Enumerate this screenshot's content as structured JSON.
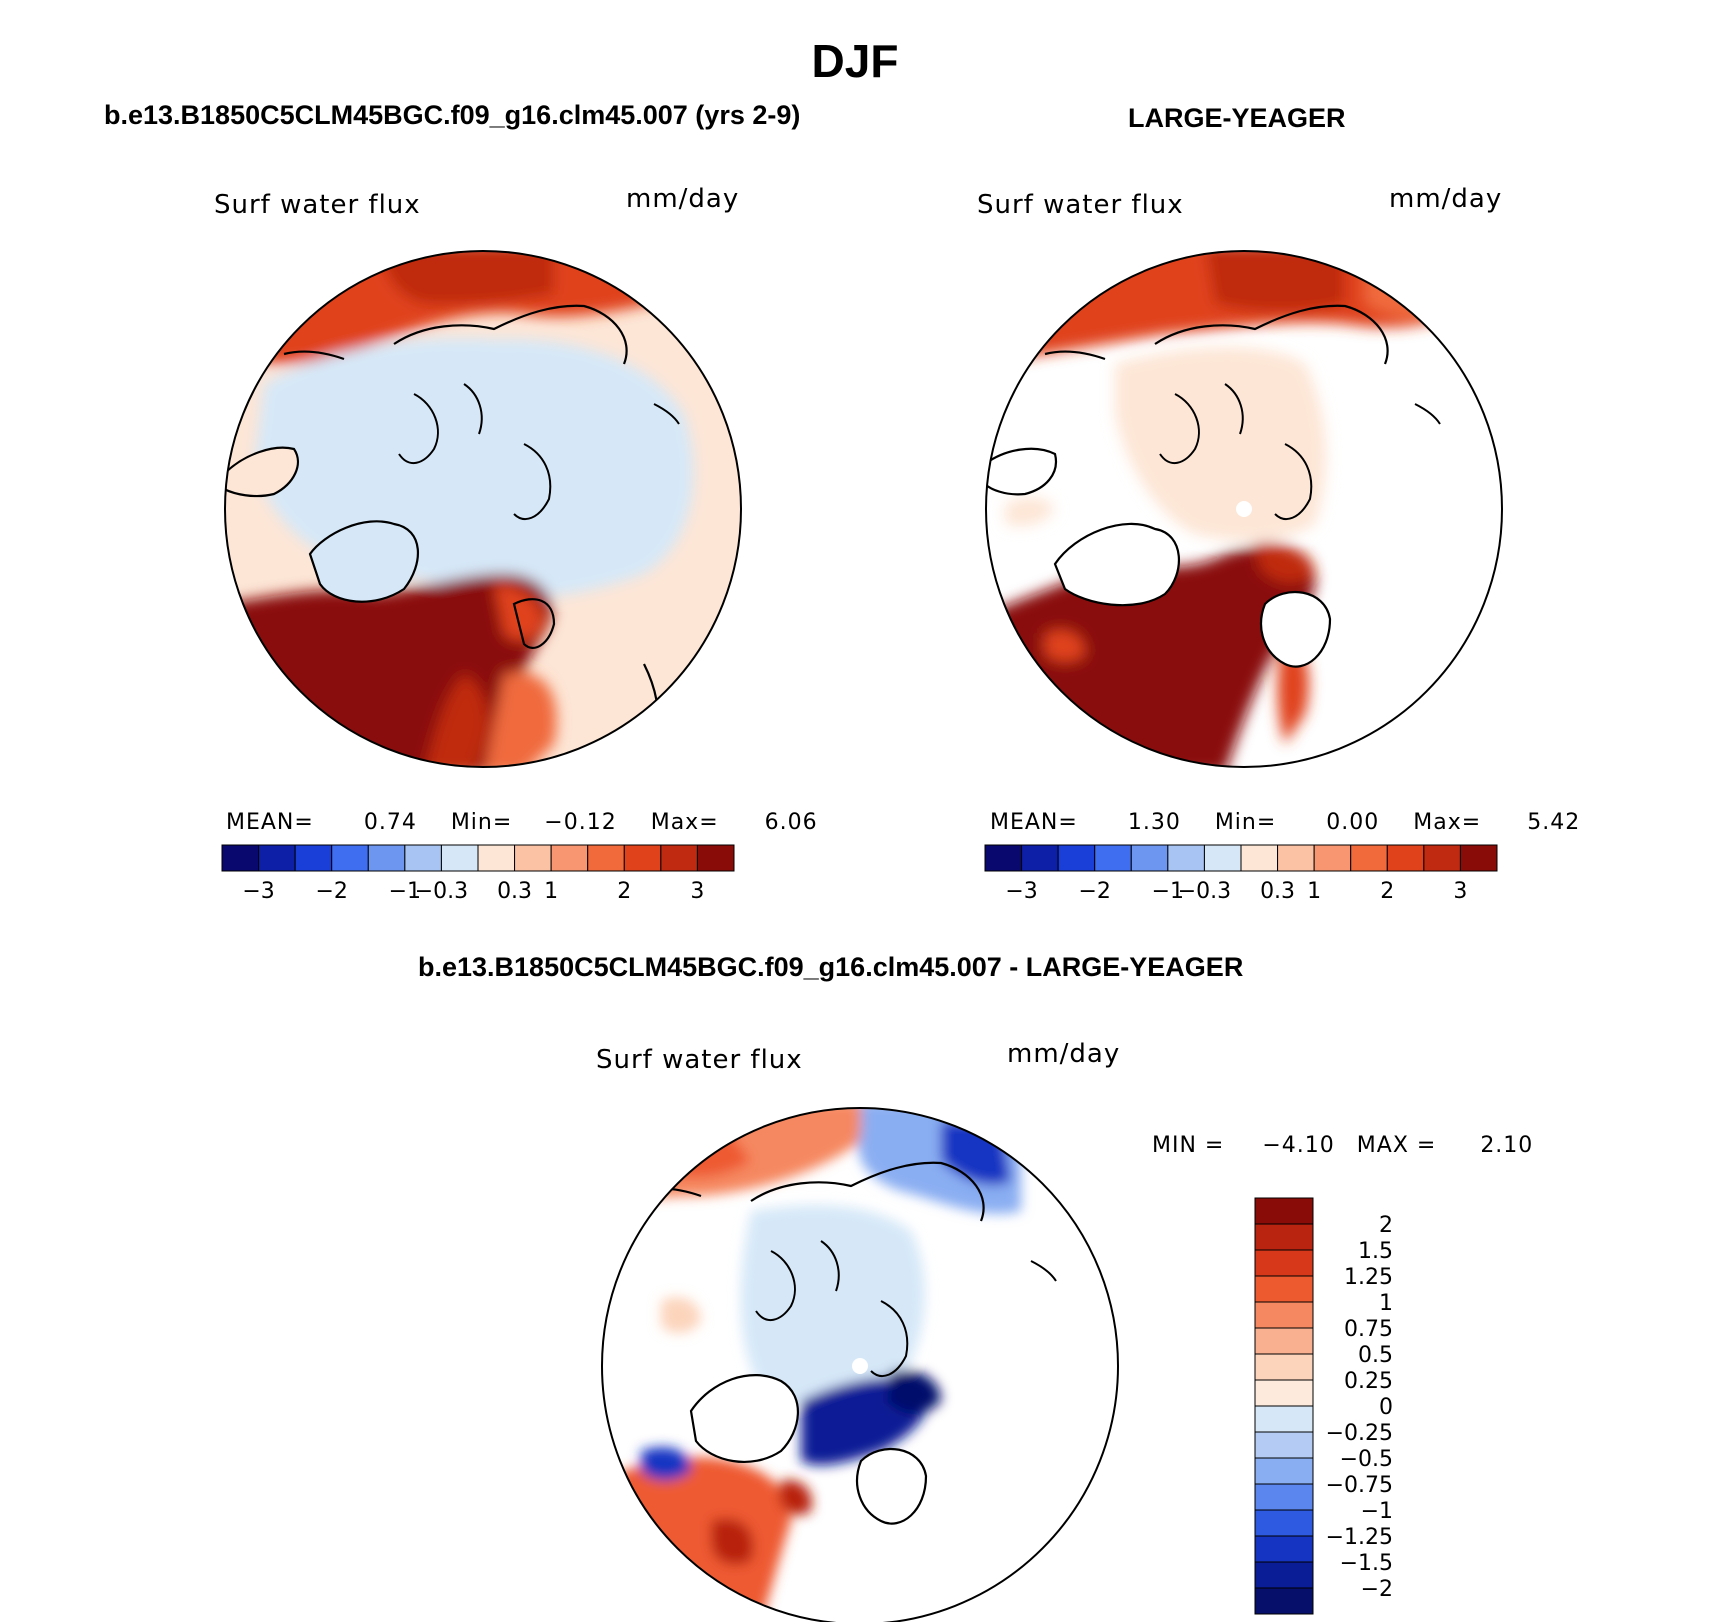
{
  "figure": {
    "title": "DJF"
  },
  "panels": [
    {
      "id": "model",
      "title": "b.e13.B1850C5CLM45BGC.f09_g16.clm45.007 (yrs 2-9)",
      "field_label": "Surf water flux",
      "units": "mm/day",
      "stats": {
        "mean_label": "MEAN=",
        "mean": "0.74",
        "min_label": "Min=",
        "min": "−0.12",
        "max_label": "Max=",
        "max": "6.06"
      },
      "colorbar_ticks": [
        "−3",
        "−2",
        "−1",
        "−0.3",
        "0.3",
        "1",
        "2",
        "3"
      ]
    },
    {
      "id": "obs",
      "title": "LARGE-YEAGER",
      "field_label": "Surf water flux",
      "units": "mm/day",
      "stats": {
        "mean_label": "MEAN=",
        "mean": "1.30",
        "min_label": "Min=",
        "min": "0.00",
        "max_label": "Max=",
        "max": "5.42"
      },
      "colorbar_ticks": [
        "−3",
        "−2",
        "−1",
        "−0.3",
        "0.3",
        "1",
        "2",
        "3"
      ]
    },
    {
      "id": "diff",
      "title": "b.e13.B1850C5CLM45BGC.f09_g16.clm45.007 - LARGE-YEAGER",
      "field_label": "Surf water flux",
      "units": "mm/day",
      "stats": {
        "min_label": "MIN =",
        "min": "−4.10",
        "max_label": "MAX =",
        "max": "2.10"
      },
      "colorbar_ticks": [
        "2",
        "1.5",
        "1.25",
        "1",
        "0.75",
        "0.5",
        "0.25",
        "0",
        "−0.25",
        "−0.5",
        "−0.75",
        "−1",
        "−1.25",
        "−1.5",
        "−2"
      ]
    }
  ],
  "colors": {
    "abs_scale": [
      "#08086e",
      "#0c1fa6",
      "#1a3fd8",
      "#3f6ef0",
      "#6d96f0",
      "#a8c4f2",
      "#d6e8f8",
      "#fde6d6",
      "#fcc2a4",
      "#f79670",
      "#f06a3c",
      "#e0421c",
      "#c02a10",
      "#8a0c08"
    ],
    "diff_scale": [
      "#8a0c08",
      "#b82410",
      "#d8381a",
      "#ee5a30",
      "#f58860",
      "#f9b090",
      "#fcd4bc",
      "#fdeadc",
      "#d6e8f8",
      "#b4ccf4",
      "#8aaef2",
      "#5a86ee",
      "#2e5ae2",
      "#1634c2",
      "#0a1c96",
      "#06106a"
    ],
    "land": "#ffffff",
    "coast": "#000000"
  }
}
